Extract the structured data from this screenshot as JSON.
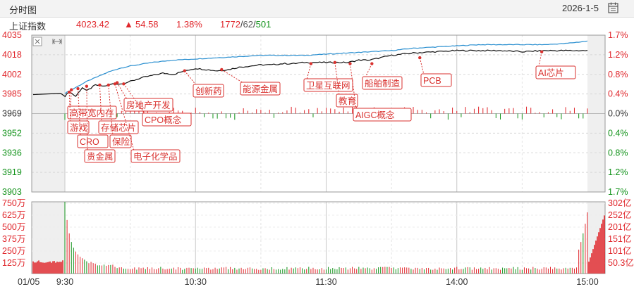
{
  "header": {
    "tab_label": "分时图",
    "date": "2026-1-5",
    "calendar_icon": "calendar-icon"
  },
  "quote": {
    "index_name": "上证指数",
    "price": "4023.42",
    "arrow": "▲",
    "change": "54.58",
    "change_pct": "1.38%",
    "advancers": "1772",
    "unchanged": "62",
    "decliners": "501"
  },
  "colors": {
    "up": "#e0262b",
    "down": "#13931b",
    "price_line": "#111111",
    "avg_line": "#2a8fd0",
    "grid": "#d8d8d8"
  },
  "chart_data": {
    "type": "line",
    "prev_close": 3969,
    "price_axis": {
      "ylim": [
        3903,
        4035
      ],
      "ticks": [
        "4035",
        "4018",
        "4002",
        "3985",
        "3969",
        "3952",
        "3936",
        "3919",
        "3903"
      ],
      "pct_ticks": [
        "1.7%",
        "1.2%",
        "0.8%",
        "0.4%",
        "0.0%",
        "0.4%",
        "0.8%",
        "1.2%",
        "1.7%"
      ]
    },
    "x_labels": [
      "01/05",
      "9:30",
      "10:30",
      "11:30",
      "14:00",
      "15:00"
    ],
    "price_series": {
      "minutes": [
        0,
        2,
        5,
        8,
        10,
        14,
        18,
        22,
        26,
        30,
        35,
        40,
        45,
        50,
        55,
        60,
        65,
        70,
        75,
        80,
        85,
        90,
        95,
        100,
        105,
        110,
        115,
        120,
        125,
        130,
        135,
        140,
        145,
        150,
        160,
        170,
        180,
        190,
        200,
        210,
        220,
        230,
        240
      ],
      "values": [
        3983.5,
        3987.5,
        3983.5,
        3991,
        3988,
        3993,
        3992,
        3994,
        3994,
        3996,
        3999,
        4001,
        4003,
        4002,
        4005,
        4007,
        4006,
        4005,
        4006,
        4008,
        4009,
        4010,
        4010,
        4011,
        4011,
        4012,
        4012,
        4012,
        4012,
        4012,
        4014,
        4014,
        4016,
        4018,
        4020,
        4021,
        4022,
        4022,
        4022,
        4021,
        4022,
        4022,
        4022
      ]
    },
    "avg_series": {
      "minutes": [
        0,
        5,
        10,
        15,
        20,
        25,
        30,
        40,
        50,
        60,
        70,
        80,
        90,
        100,
        110,
        120,
        130,
        140,
        150,
        160,
        170,
        180,
        190,
        200,
        210,
        220,
        230,
        240
      ],
      "values": [
        3986,
        3991,
        3996,
        4000,
        4004,
        4007,
        4009,
        4012,
        4014,
        4015,
        4016,
        4017,
        4018,
        4018,
        4018,
        4019,
        4020,
        4021,
        4022,
        4024,
        4025,
        4026,
        4027,
        4027,
        4027,
        4027,
        4028,
        4030
      ]
    },
    "volume_axis": {
      "left_ticks": [
        "750万",
        "625万",
        "500万",
        "375万",
        "250万",
        "125万"
      ],
      "right_ticks": [
        "302亿",
        "252亿",
        "201亿",
        "151亿",
        "101亿",
        "50.3亿"
      ],
      "max": 750
    },
    "volume": {
      "open_call_auction": 140,
      "first_minutes": [
        750,
        560,
        420,
        330,
        270,
        230,
        200,
        175,
        160,
        145
      ],
      "typical": 70,
      "close_ramp": [
        250,
        330,
        420,
        520,
        640
      ]
    },
    "annotations": [
      {
        "label": "高带宽内存",
        "minute": 3,
        "price": 3989
      },
      {
        "label": "游戏",
        "minute": 2,
        "price": 3987
      },
      {
        "label": "CRO",
        "minute": 6,
        "price": 3990
      },
      {
        "label": "贵金属",
        "minute": 10,
        "price": 3992
      },
      {
        "label": "存储芯片",
        "minute": 16,
        "price": 3993
      },
      {
        "label": "保险",
        "minute": 20,
        "price": 3993
      },
      {
        "label": "房地产开发",
        "minute": 24,
        "price": 3995
      },
      {
        "label": "电子化学品",
        "minute": 23,
        "price": 3994
      },
      {
        "label": "CPO概念",
        "minute": 27,
        "price": 3994
      },
      {
        "label": "创新药",
        "minute": 55,
        "price": 4005
      },
      {
        "label": "能源金属",
        "minute": 72,
        "price": 4006
      },
      {
        "label": "卫星互联网",
        "minute": 113,
        "price": 4011
      },
      {
        "label": "教育",
        "minute": 124,
        "price": 4012
      },
      {
        "label": "AIGC概念",
        "minute": 131,
        "price": 4011
      },
      {
        "label": "船舶制造",
        "minute": 141,
        "price": 4011
      },
      {
        "label": "PCB",
        "minute": 163,
        "price": 4016
      },
      {
        "label": "AI芯片",
        "minute": 219,
        "price": 4021
      }
    ]
  }
}
